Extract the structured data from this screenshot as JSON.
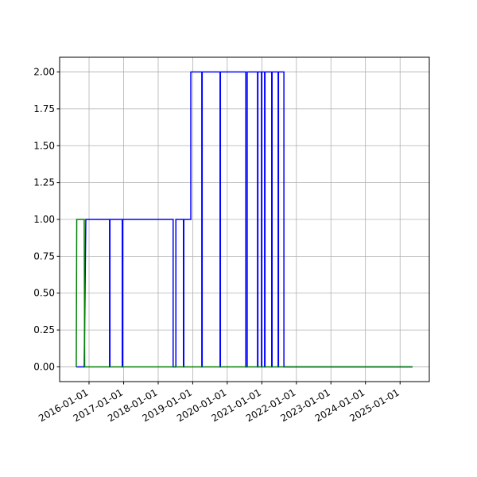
{
  "chart_data": {
    "type": "line",
    "x": [
      "2015-08-19",
      "2015-11-11",
      "2015-11-28",
      "2016-08-05",
      "2016-08-05",
      "2016-08-09",
      "2016-08-09",
      "2016-12-17",
      "2016-12-17",
      "2016-12-21",
      "2016-12-21",
      "2018-06-08",
      "2018-06-08",
      "2018-07-07",
      "2018-07-07",
      "2018-09-25",
      "2018-09-25",
      "2018-09-29",
      "2018-09-29",
      "2018-12-12",
      "2018-12-12",
      "2019-04-07",
      "2019-04-07",
      "2019-04-11",
      "2019-04-11",
      "2019-10-17",
      "2019-10-17",
      "2019-10-21",
      "2019-10-21",
      "2020-07-15",
      "2020-07-15",
      "2020-07-30",
      "2020-07-30",
      "2020-11-16",
      "2020-11-16",
      "2020-11-20",
      "2020-11-20",
      "2020-12-28",
      "2020-12-28",
      "2021-01-01",
      "2021-01-01",
      "2021-01-30",
      "2021-01-30",
      "2021-02-03",
      "2021-02-03",
      "2021-04-15",
      "2021-04-15",
      "2021-04-19",
      "2021-04-19",
      "2021-06-22",
      "2021-06-22",
      "2021-06-26",
      "2021-06-26",
      "2021-08-22",
      "2021-08-22",
      "2025-05-12"
    ],
    "series": [
      {
        "color": "#0000ff",
        "values": [
          0,
          0,
          1,
          1,
          0,
          0,
          1,
          1,
          0,
          0,
          1,
          1,
          0,
          0,
          1,
          1,
          0,
          0,
          1,
          1,
          2,
          2,
          0,
          0,
          2,
          2,
          0,
          0,
          2,
          2,
          0,
          0,
          2,
          2,
          0,
          0,
          2,
          2,
          0,
          0,
          2,
          2,
          0,
          0,
          2,
          2,
          0,
          0,
          2,
          2,
          0,
          0,
          2,
          2,
          0,
          0
        ]
      },
      {
        "color": "#008000",
        "values": [
          0,
          null,
          null,
          null,
          null,
          null,
          null,
          null,
          null,
          null,
          null,
          null,
          null,
          null,
          null,
          null,
          null,
          null,
          null,
          null,
          null,
          null,
          null,
          null,
          null,
          null,
          null,
          null,
          null,
          null,
          null,
          null,
          null,
          null,
          null,
          null,
          null,
          null,
          null,
          null,
          null,
          null,
          null,
          null,
          null,
          null,
          null,
          null,
          null,
          null,
          null,
          null,
          null,
          null,
          null,
          null
        ]
      },
      {
        "color": "#008000",
        "x": [
          "2015-08-19",
          "2015-08-24",
          "2015-11-11",
          "2015-11-16",
          "2025-05-12"
        ],
        "values": [
          0,
          1,
          1,
          0,
          0
        ]
      }
    ],
    "xlim": [
      "2015-02-24",
      "2025-11-06"
    ],
    "xticks": [
      "2016-01-01",
      "2017-01-01",
      "2018-01-01",
      "2019-01-01",
      "2020-01-01",
      "2021-01-01",
      "2022-01-01",
      "2023-01-01",
      "2024-01-01",
      "2025-01-01"
    ],
    "ylim": [
      -0.1,
      2.1
    ],
    "yticks": [
      {
        "value": 0,
        "label": "0.00"
      },
      {
        "value": 0.25,
        "label": "0.25"
      },
      {
        "value": 0.5,
        "label": "0.50"
      },
      {
        "value": 0.75,
        "label": "0.75"
      },
      {
        "value": 1,
        "label": "1.00"
      },
      {
        "value": 1.25,
        "label": "1.25"
      },
      {
        "value": 1.5,
        "label": "1.50"
      },
      {
        "value": 1.75,
        "label": "1.75"
      },
      {
        "value": 2,
        "label": "2.00"
      }
    ],
    "grid": true
  }
}
